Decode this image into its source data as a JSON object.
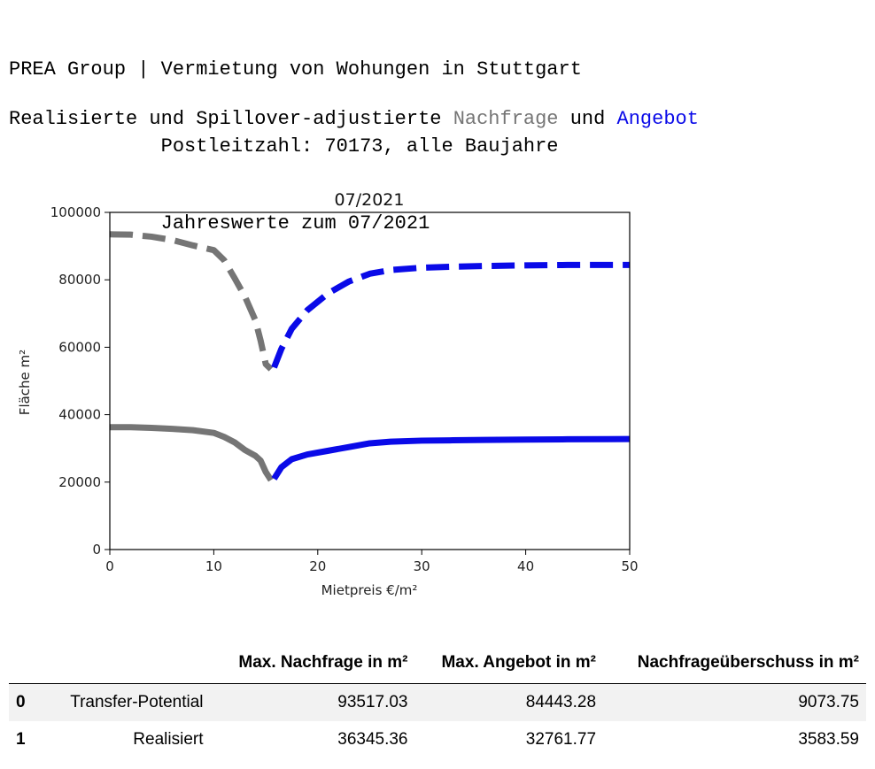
{
  "header": {
    "line1": "PREA Group | Vermietung von Wohungen in Stuttgart",
    "line2": "             Postleitzahl: 70173, alle Baujahre",
    "line3": "             Jahreswerte zum 07/2021",
    "subtitle_prefix": "Realisierte und Spillover-adjustierte ",
    "subtitle_nachfrage": "Nachfrage",
    "subtitle_und": " und ",
    "subtitle_angebot": "Angebot"
  },
  "colors": {
    "nachfrage": "#757575",
    "angebot": "#0a0ae8"
  },
  "chart_data": {
    "type": "line",
    "title": "07/2021",
    "xlabel": "Mietpreis €/m²",
    "ylabel": "Fläche m²",
    "xlim": [
      0,
      50
    ],
    "ylim": [
      0,
      100000
    ],
    "xticks": [
      "0",
      "10",
      "20",
      "30",
      "40",
      "50"
    ],
    "yticks": [
      "0",
      "20000",
      "40000",
      "60000",
      "80000",
      "100000"
    ],
    "grid": false,
    "series": [
      {
        "style": "dashed",
        "color": "#757575",
        "x": [
          0,
          2,
          4,
          6,
          8,
          10,
          11,
          12,
          13,
          14,
          14.5,
          15,
          15.5
        ],
        "y": [
          93500,
          93400,
          92800,
          91800,
          90200,
          88800,
          85800,
          80500,
          75000,
          68000,
          62000,
          55000,
          53500
        ]
      },
      {
        "style": "dashed",
        "color": "#0a0ae8",
        "x": [
          15.8,
          16.5,
          17.5,
          19,
          21,
          23,
          25,
          27,
          30,
          33,
          36,
          40,
          44,
          48,
          50
        ],
        "y": [
          54000,
          59500,
          65500,
          71000,
          76000,
          79500,
          81800,
          82900,
          83600,
          83900,
          84100,
          84300,
          84400,
          84400,
          84400
        ]
      },
      {
        "style": "solid",
        "color": "#757575",
        "x": [
          0,
          2,
          4,
          6,
          8,
          10,
          11,
          12,
          13,
          14,
          14.5,
          15,
          15.5
        ],
        "y": [
          36300,
          36300,
          36100,
          35800,
          35400,
          34600,
          33400,
          31800,
          29500,
          27800,
          26400,
          23000,
          20600
        ]
      },
      {
        "style": "solid",
        "color": "#0a0ae8",
        "x": [
          15.8,
          16.5,
          17.5,
          19,
          21,
          23,
          25,
          27,
          30,
          33,
          36,
          40,
          44,
          48,
          50
        ],
        "y": [
          21000,
          24400,
          26800,
          28200,
          29300,
          30400,
          31500,
          32000,
          32300,
          32400,
          32500,
          32600,
          32700,
          32750,
          32760
        ]
      }
    ]
  },
  "table": {
    "columns": [
      "Max. Nachfrage in m²",
      "Max. Angebot in m²",
      "Nachfrageüberschuss in m²"
    ],
    "rows": [
      {
        "index": "0",
        "label": "Transfer-Potential",
        "values": [
          "93517.03",
          "84443.28",
          "9073.75"
        ]
      },
      {
        "index": "1",
        "label": "Realisiert",
        "values": [
          "36345.36",
          "32761.77",
          "3583.59"
        ]
      }
    ]
  }
}
